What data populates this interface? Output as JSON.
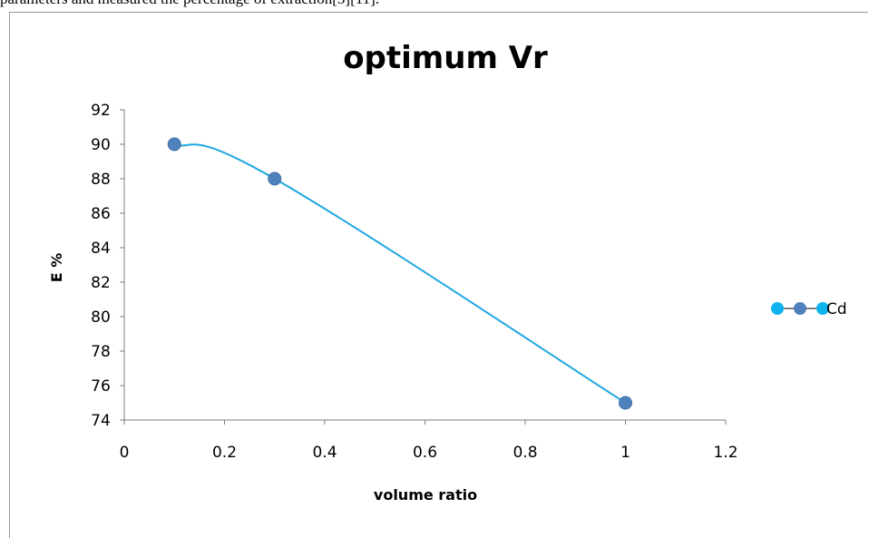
{
  "page": {
    "caption_fragment": "parameters and measured the percentage of extraction[5][11]."
  },
  "colors": {
    "line": "#1fa7e0",
    "marker": "#4f81bd",
    "legend_marker_end": "#0fb4ef",
    "axis": "#7f7f7f"
  },
  "chart_data": {
    "type": "scatter",
    "title": "optimum Vr",
    "xlabel": "volume ratio",
    "ylabel": "E %",
    "xlim": [
      0,
      1.2
    ],
    "ylim": [
      74,
      92
    ],
    "xticks": [
      "0",
      "0.2",
      "0.4",
      "0.6",
      "0.8",
      "1",
      "1.2"
    ],
    "yticks": [
      "74",
      "76",
      "78",
      "80",
      "82",
      "84",
      "86",
      "88",
      "90",
      "92"
    ],
    "grid": false,
    "legend_position": "right",
    "smooth_line": true,
    "series": [
      {
        "name": "Cd",
        "x": [
          0.1,
          0.3,
          1.0
        ],
        "y": [
          90,
          88,
          75
        ]
      }
    ]
  }
}
